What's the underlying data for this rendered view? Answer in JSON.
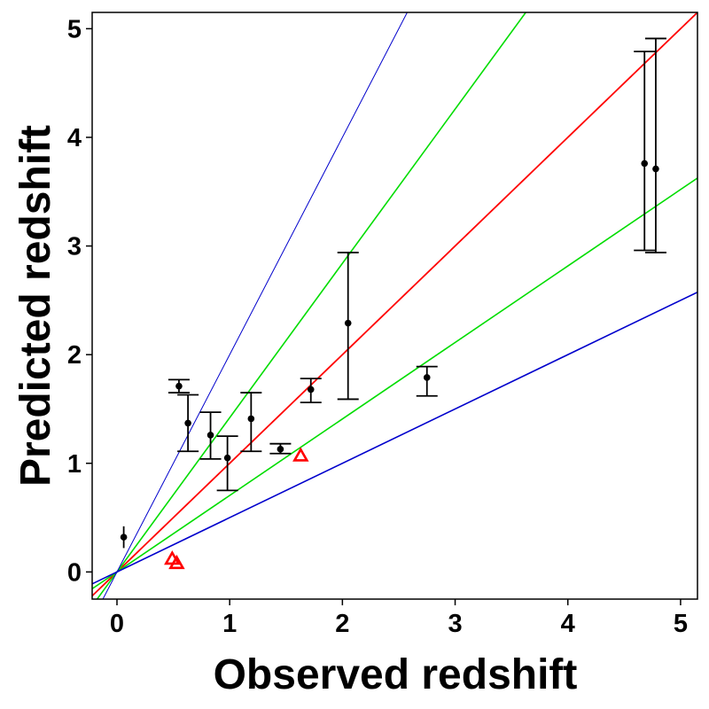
{
  "chart_data": {
    "type": "scatter",
    "title": "",
    "xlabel": "Observed redshift",
    "ylabel": "Predicted redshift",
    "xlim": [
      -0.22,
      5.15
    ],
    "ylim": [
      -0.25,
      5.15
    ],
    "x_ticks": [
      0,
      1,
      2,
      3,
      4,
      5
    ],
    "y_ticks": [
      0,
      1,
      2,
      3,
      4,
      5
    ],
    "grid": false,
    "colors": {
      "identity": "#ff0000",
      "green_band": "#00dd00",
      "blue_band": "#0000cc",
      "points": "#000000",
      "triangles": "#ff0000"
    },
    "lines": [
      {
        "slope": 1.0,
        "intercept": 0.0,
        "color": "#ff0000",
        "width": 1.8
      },
      {
        "slope": 1.42,
        "intercept": 0.0,
        "color": "#00dd00",
        "width": 1.6
      },
      {
        "slope": 0.704,
        "intercept": 0.0,
        "color": "#00dd00",
        "width": 1.6
      },
      {
        "slope": 0.5,
        "intercept": 0.0,
        "color": "#0000cc",
        "width": 1.6
      },
      {
        "slope": 2.0,
        "intercept": 0.0,
        "color": "#0000cc",
        "width": 1.0
      }
    ],
    "points": [
      {
        "x": 0.06,
        "y": 0.32,
        "ylo": 0.22,
        "yhi": 0.42,
        "caps": false
      },
      {
        "x": 0.55,
        "y": 1.71,
        "ylo": 1.65,
        "yhi": 1.77,
        "caps": true
      },
      {
        "x": 0.63,
        "y": 1.37,
        "ylo": 1.11,
        "yhi": 1.63,
        "caps": true
      },
      {
        "x": 0.83,
        "y": 1.26,
        "ylo": 1.04,
        "yhi": 1.47,
        "caps": true
      },
      {
        "x": 0.98,
        "y": 1.05,
        "ylo": 0.75,
        "yhi": 1.25,
        "caps": true
      },
      {
        "x": 1.19,
        "y": 1.41,
        "ylo": 1.11,
        "yhi": 1.65,
        "caps": true
      },
      {
        "x": 1.45,
        "y": 1.13,
        "ylo": 1.09,
        "yhi": 1.18,
        "caps": true
      },
      {
        "x": 1.72,
        "y": 1.68,
        "ylo": 1.56,
        "yhi": 1.78,
        "caps": true
      },
      {
        "x": 2.05,
        "y": 2.29,
        "ylo": 1.59,
        "yhi": 2.94,
        "caps": true
      },
      {
        "x": 2.75,
        "y": 1.79,
        "ylo": 1.62,
        "yhi": 1.89,
        "caps": true
      },
      {
        "x": 4.68,
        "y": 3.76,
        "ylo": 2.96,
        "yhi": 4.79,
        "caps": true
      },
      {
        "x": 4.78,
        "y": 3.71,
        "ylo": 2.94,
        "yhi": 4.91,
        "caps": true
      }
    ],
    "triangles": [
      {
        "x": 0.49,
        "y": 0.12
      },
      {
        "x": 0.53,
        "y": 0.08
      },
      {
        "x": 1.63,
        "y": 1.07
      }
    ]
  }
}
